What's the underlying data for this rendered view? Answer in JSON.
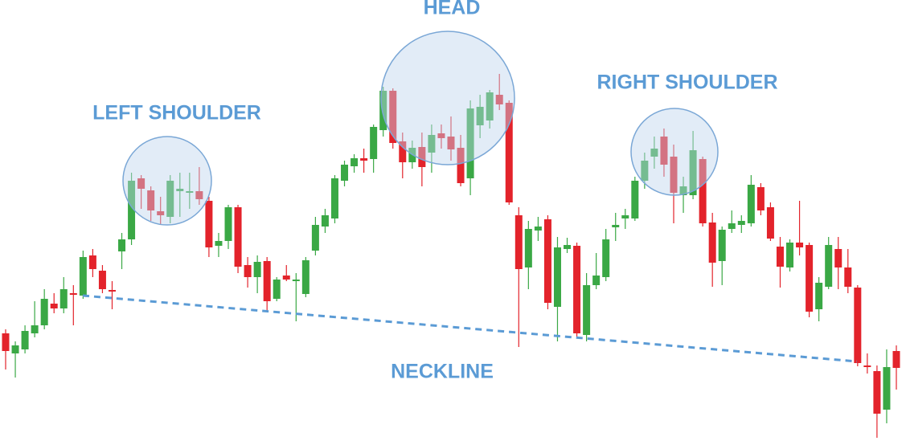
{
  "chart_data": {
    "type": "candlestick",
    "annotations": {
      "head": "HEAD",
      "left_shoulder": "LEFT SHOULDER",
      "right_shoulder": "RIGHT SHOULDER",
      "neckline": "NECKLINE"
    },
    "up_color": "#3aa845",
    "down_color": "#e3232b",
    "ylim": [
      0,
      554
    ],
    "open": [
      139,
      114,
      119,
      139,
      149,
      176,
      170,
      189,
      186,
      236,
      217,
      193,
      241,
      256,
      332,
      317,
      291,
      284,
      316,
      314,
      316,
      304,
      248,
      254,
      296,
      224,
      209,
      229,
      182,
      211,
      204,
      188,
      242,
      272,
      282,
      329,
      347,
      357,
      356,
      392,
      441,
      378,
      352,
      371,
      364,
      388,
      384,
      370,
      332,
      398,
      404,
      436,
      426,
      286,
      221,
      267,
      281,
      172,
      244,
      248,
      137,
      199,
      209,
      271,
      282,
      282,
      329,
      359,
      384,
      359,
      311,
      311,
      356,
      277,
      229,
      269,
      274,
      276,
      321,
      296,
      247,
      221,
      252,
      249,
      169,
      197,
      244,
      221,
      196,
      99,
      92,
      44,
      117
    ],
    "high": [
      144,
      129,
      149,
      179,
      194,
      189,
      209,
      199,
      242,
      244,
      224,
      204,
      264,
      339,
      336,
      322,
      309,
      336,
      339,
      339,
      346,
      309,
      264,
      299,
      299,
      234,
      236,
      234,
      209,
      224,
      214,
      234,
      284,
      294,
      336,
      354,
      362,
      369,
      399,
      446,
      444,
      389,
      379,
      389,
      399,
      399,
      409,
      386,
      429,
      436,
      442,
      462,
      429,
      296,
      279,
      284,
      286,
      259,
      258,
      252,
      214,
      239,
      269,
      289,
      294,
      334,
      364,
      384,
      394,
      374,
      334,
      391,
      359,
      289,
      272,
      292,
      286,
      336,
      326,
      302,
      259,
      256,
      304,
      252,
      209,
      259,
      259,
      244,
      199,
      114,
      99,
      119,
      124
    ],
    "low": [
      94,
      84,
      114,
      134,
      144,
      164,
      164,
      149,
      182,
      209,
      189,
      169,
      219,
      249,
      294,
      279,
      274,
      276,
      284,
      294,
      299,
      234,
      234,
      244,
      214,
      196,
      189,
      166,
      179,
      204,
      154,
      184,
      236,
      264,
      276,
      322,
      339,
      339,
      339,
      384,
      369,
      332,
      344,
      322,
      339,
      369,
      354,
      322,
      311,
      382,
      394,
      417,
      299,
      122,
      194,
      254,
      169,
      129,
      239,
      134,
      129,
      194,
      204,
      254,
      269,
      279,
      319,
      344,
      334,
      276,
      289,
      306,
      272,
      197,
      199,
      264,
      264,
      272,
      286,
      254,
      196,
      216,
      236,
      159,
      154,
      194,
      194,
      189,
      98,
      89,
      9,
      27,
      69
    ],
    "close": [
      117,
      124,
      142,
      149,
      182,
      170,
      194,
      187,
      234,
      219,
      194,
      191,
      256,
      329,
      319,
      292,
      286,
      329,
      319,
      316,
      306,
      246,
      254,
      296,
      222,
      209,
      228,
      179,
      206,
      206,
      206,
      230,
      274,
      286,
      332,
      349,
      357,
      354,
      396,
      441,
      376,
      352,
      370,
      346,
      386,
      382,
      368,
      326,
      419,
      421,
      439,
      424,
      302,
      219,
      269,
      272,
      177,
      246,
      249,
      139,
      199,
      211,
      256,
      274,
      286,
      329,
      354,
      369,
      349,
      314,
      322,
      367,
      276,
      227,
      268,
      276,
      279,
      324,
      292,
      257,
      222,
      252,
      246,
      166,
      202,
      249,
      221,
      197,
      102,
      97,
      39,
      97,
      96
    ]
  }
}
